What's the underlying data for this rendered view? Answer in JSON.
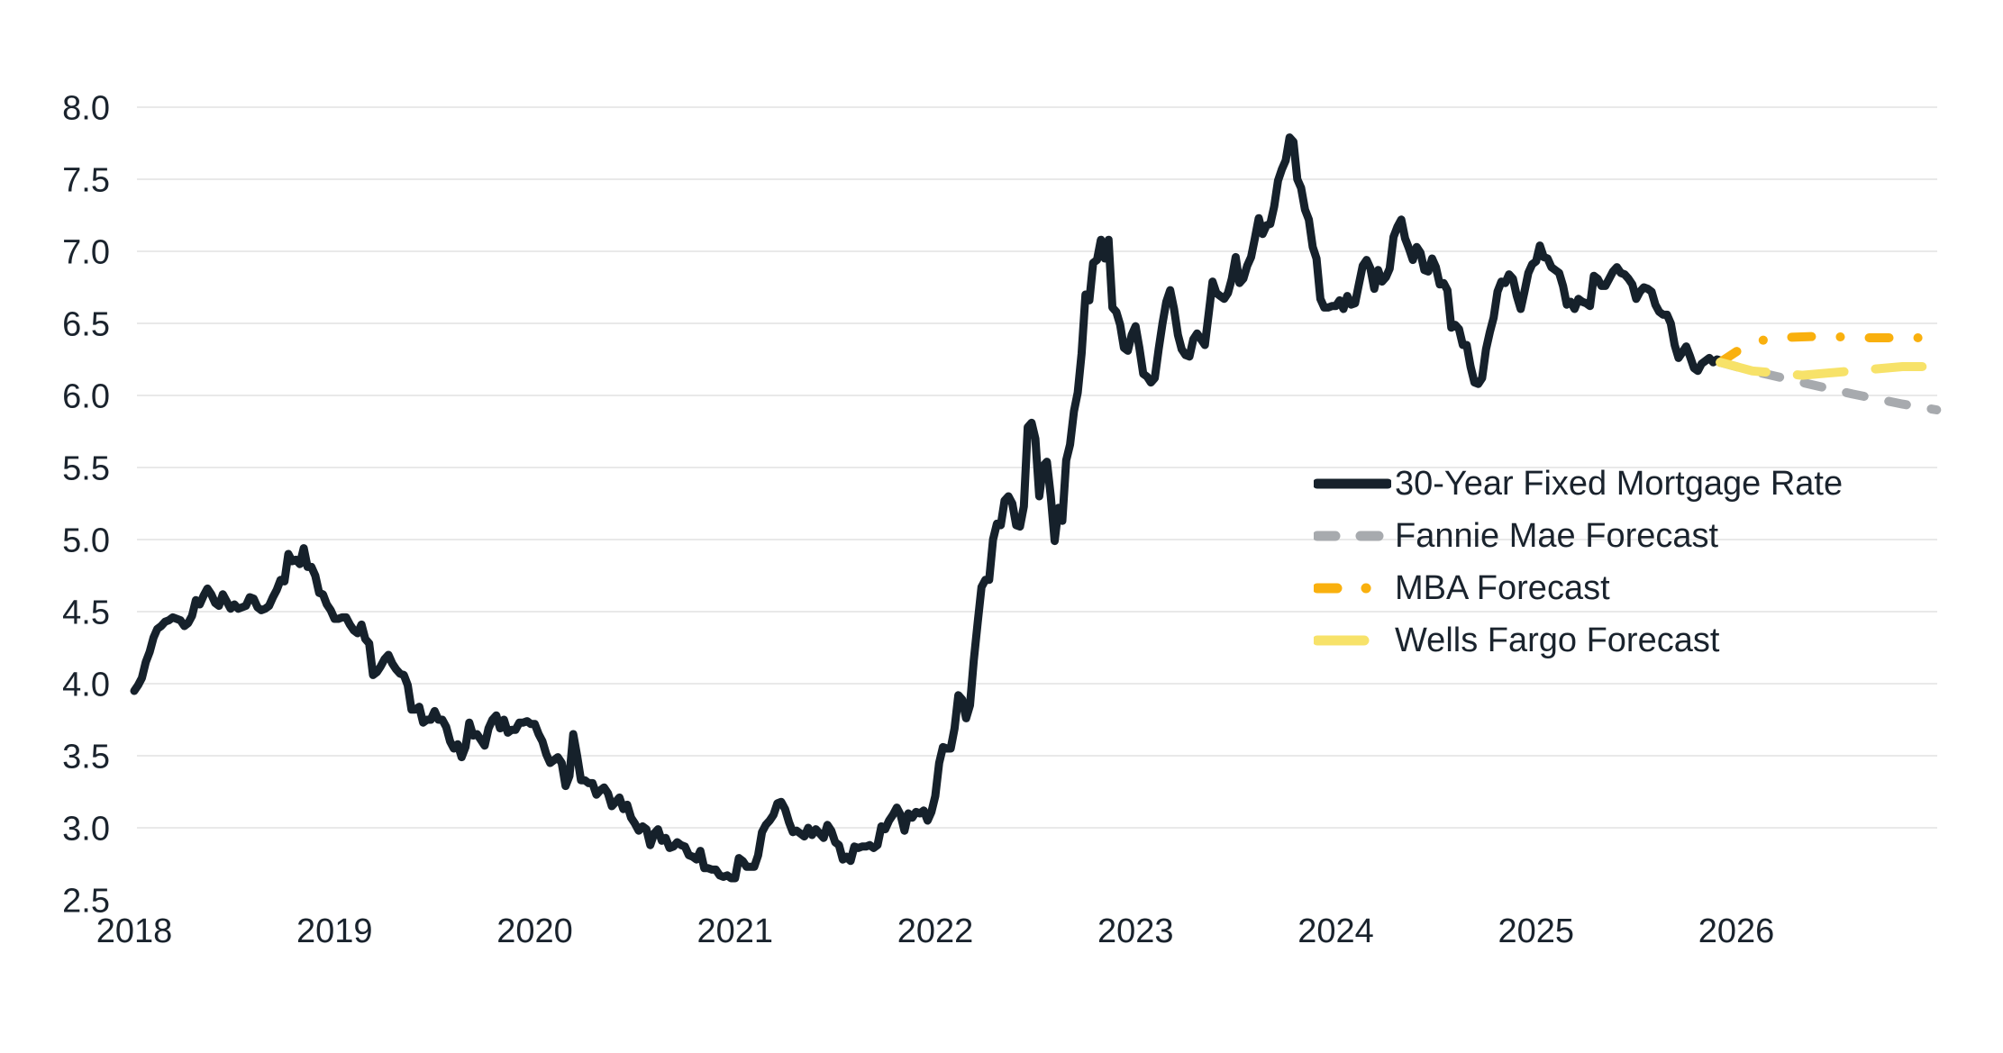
{
  "chart_data": {
    "type": "line",
    "title": "",
    "xlabel": "",
    "ylabel": "",
    "colors": {
      "actual": "#16212b",
      "fannie_mae": "#a7aaae",
      "mba": "#f9b00e",
      "wells_fargo": "#f7e269",
      "gridline": "#e9e9e9",
      "tick_text": "#1a232d",
      "background": "#ffffff"
    },
    "x_axis": {
      "tick_values": [
        2018,
        2019,
        2020,
        2021,
        2022,
        2023,
        2024,
        2025,
        2026
      ],
      "tick_labels": [
        "2018",
        "2019",
        "2020",
        "2021",
        "2022",
        "2023",
        "2024",
        "2025",
        "2026"
      ],
      "range": [
        2018.0,
        2027.0
      ]
    },
    "y_axis": {
      "max": 8.0,
      "min": 2.5,
      "tick_values": [
        8.0,
        7.5,
        7.0,
        6.5,
        6.0,
        5.5,
        5.0,
        4.5,
        4.0,
        3.5,
        3.0,
        2.5
      ],
      "tick_labels": [
        "8.0",
        "7.5",
        "7.0",
        "6.5",
        "6.0",
        "5.5",
        "5.0",
        "4.5",
        "4.0",
        "3.5",
        "3.0",
        "2.5"
      ],
      "gridlines_at": [
        8.0,
        7.5,
        7.0,
        6.5,
        6.0,
        5.5,
        5.0,
        4.5,
        4.0,
        3.5,
        3.0
      ]
    },
    "legend_position": "middle-right",
    "series": [
      {
        "name": "30-Year Fixed Mortgage Rate",
        "color": "#16212b",
        "line_style": "solid",
        "start_year": 2018.0,
        "points_per_year": 52,
        "values": [
          3.95,
          3.99,
          4.04,
          4.15,
          4.22,
          4.32,
          4.38,
          4.4,
          4.43,
          4.44,
          4.46,
          4.45,
          4.44,
          4.4,
          4.42,
          4.47,
          4.58,
          4.55,
          4.61,
          4.66,
          4.62,
          4.56,
          4.54,
          4.62,
          4.57,
          4.52,
          4.55,
          4.52,
          4.53,
          4.54,
          4.6,
          4.59,
          4.53,
          4.51,
          4.52,
          4.54,
          4.6,
          4.65,
          4.72,
          4.71,
          4.9,
          4.85,
          4.86,
          4.83,
          4.94,
          4.81,
          4.81,
          4.75,
          4.63,
          4.62,
          4.55,
          4.51,
          4.45,
          4.45,
          4.46,
          4.46,
          4.41,
          4.37,
          4.35,
          4.41,
          4.31,
          4.28,
          4.06,
          4.08,
          4.12,
          4.17,
          4.2,
          4.14,
          4.1,
          4.07,
          4.06,
          3.99,
          3.82,
          3.82,
          3.84,
          3.73,
          3.75,
          3.75,
          3.81,
          3.75,
          3.75,
          3.7,
          3.6,
          3.55,
          3.58,
          3.49,
          3.56,
          3.73,
          3.64,
          3.65,
          3.61,
          3.57,
          3.69,
          3.75,
          3.78,
          3.69,
          3.75,
          3.66,
          3.68,
          3.68,
          3.73,
          3.73,
          3.74,
          3.72,
          3.72,
          3.65,
          3.6,
          3.51,
          3.45,
          3.47,
          3.49,
          3.45,
          3.29,
          3.36,
          3.65,
          3.5,
          3.33,
          3.33,
          3.31,
          3.31,
          3.23,
          3.26,
          3.28,
          3.24,
          3.15,
          3.18,
          3.21,
          3.13,
          3.16,
          3.07,
          3.03,
          2.98,
          3.01,
          2.99,
          2.88,
          2.96,
          2.99,
          2.91,
          2.93,
          2.86,
          2.87,
          2.9,
          2.88,
          2.87,
          2.81,
          2.8,
          2.78,
          2.84,
          2.72,
          2.72,
          2.71,
          2.71,
          2.67,
          2.66,
          2.67,
          2.65,
          2.65,
          2.79,
          2.77,
          2.73,
          2.73,
          2.73,
          2.81,
          2.97,
          3.02,
          3.05,
          3.09,
          3.17,
          3.18,
          3.13,
          3.04,
          2.97,
          2.98,
          2.96,
          2.94,
          3.0,
          2.95,
          2.99,
          2.96,
          2.93,
          3.02,
          2.98,
          2.9,
          2.88,
          2.78,
          2.8,
          2.77,
          2.87,
          2.86,
          2.87,
          2.87,
          2.88,
          2.86,
          2.88,
          3.01,
          2.99,
          3.05,
          3.09,
          3.14,
          3.09,
          2.98,
          3.1,
          3.07,
          3.11,
          3.1,
          3.12,
          3.05,
          3.11,
          3.22,
          3.45,
          3.56,
          3.55,
          3.55,
          3.69,
          3.92,
          3.89,
          3.76,
          3.85,
          4.16,
          4.42,
          4.67,
          4.72,
          4.72,
          5.0,
          5.11,
          5.1,
          5.27,
          5.3,
          5.25,
          5.1,
          5.09,
          5.23,
          5.78,
          5.81,
          5.7,
          5.3,
          5.51,
          5.54,
          5.3,
          4.99,
          5.22,
          5.13,
          5.55,
          5.66,
          5.89,
          6.02,
          6.29,
          6.7,
          6.66,
          6.92,
          6.94,
          7.08,
          6.95,
          7.08,
          6.61,
          6.58,
          6.49,
          6.33,
          6.31,
          6.42,
          6.48,
          6.33,
          6.15,
          6.13,
          6.09,
          6.12,
          6.32,
          6.5,
          6.65,
          6.73,
          6.6,
          6.42,
          6.32,
          6.28,
          6.27,
          6.39,
          6.43,
          6.39,
          6.35,
          6.57,
          6.79,
          6.71,
          6.69,
          6.67,
          6.71,
          6.81,
          6.96,
          6.78,
          6.81,
          6.9,
          6.96,
          7.09,
          7.23,
          7.12,
          7.18,
          7.19,
          7.31,
          7.49,
          7.57,
          7.63,
          7.79,
          7.76,
          7.5,
          7.44,
          7.29,
          7.22,
          7.03,
          6.95,
          6.67,
          6.61,
          6.61,
          6.62,
          6.62,
          6.66,
          6.6,
          6.69,
          6.63,
          6.64,
          6.77,
          6.9,
          6.94,
          6.88,
          6.74,
          6.87,
          6.79,
          6.82,
          6.88,
          7.1,
          7.17,
          7.22,
          7.09,
          7.02,
          6.94,
          7.03,
          6.99,
          6.87,
          6.86,
          6.95,
          6.89,
          6.77,
          6.78,
          6.73,
          6.47,
          6.49,
          6.46,
          6.35,
          6.35,
          6.2,
          6.09,
          6.08,
          6.12,
          6.32,
          6.44,
          6.54,
          6.72,
          6.79,
          6.78,
          6.84,
          6.81,
          6.69,
          6.6,
          6.72,
          6.85,
          6.91,
          6.93,
          7.04,
          6.96,
          6.95,
          6.89,
          6.87,
          6.85,
          6.76,
          6.63,
          6.65,
          6.6,
          6.67,
          6.65,
          6.64,
          6.62,
          6.83,
          6.81,
          6.76,
          6.76,
          6.81,
          6.86,
          6.89,
          6.85,
          6.84,
          6.81,
          6.77,
          6.67,
          6.72,
          6.75,
          6.74,
          6.72,
          6.63,
          6.58,
          6.56,
          6.56,
          6.5,
          6.35,
          6.26,
          6.3,
          6.34,
          6.27,
          6.19,
          6.17,
          6.22,
          6.24,
          6.26,
          6.23,
          6.25,
          6.24
        ]
      },
      {
        "name": "Fannie Mae Forecast",
        "color": "#a7aaae",
        "line_style": "dash",
        "points": [
          [
            2025.92,
            6.23
          ],
          [
            2026.08,
            6.17
          ],
          [
            2026.33,
            6.09
          ],
          [
            2026.58,
            6.01
          ],
          [
            2026.83,
            5.94
          ],
          [
            2027.0,
            5.9
          ]
        ]
      },
      {
        "name": "MBA Forecast",
        "color": "#f9b00e",
        "line_style": "dashdot",
        "points": [
          [
            2025.92,
            6.23
          ],
          [
            2026.04,
            6.34
          ],
          [
            2026.17,
            6.4
          ],
          [
            2026.42,
            6.41
          ],
          [
            2026.67,
            6.4
          ],
          [
            2027.0,
            6.4
          ]
        ]
      },
      {
        "name": "Wells Fargo Forecast",
        "color": "#f7e269",
        "line_style": "longdash",
        "points": [
          [
            2025.92,
            6.23
          ],
          [
            2026.08,
            6.17
          ],
          [
            2026.33,
            6.14
          ],
          [
            2026.58,
            6.17
          ],
          [
            2026.83,
            6.2
          ],
          [
            2027.0,
            6.2
          ]
        ]
      }
    ]
  }
}
